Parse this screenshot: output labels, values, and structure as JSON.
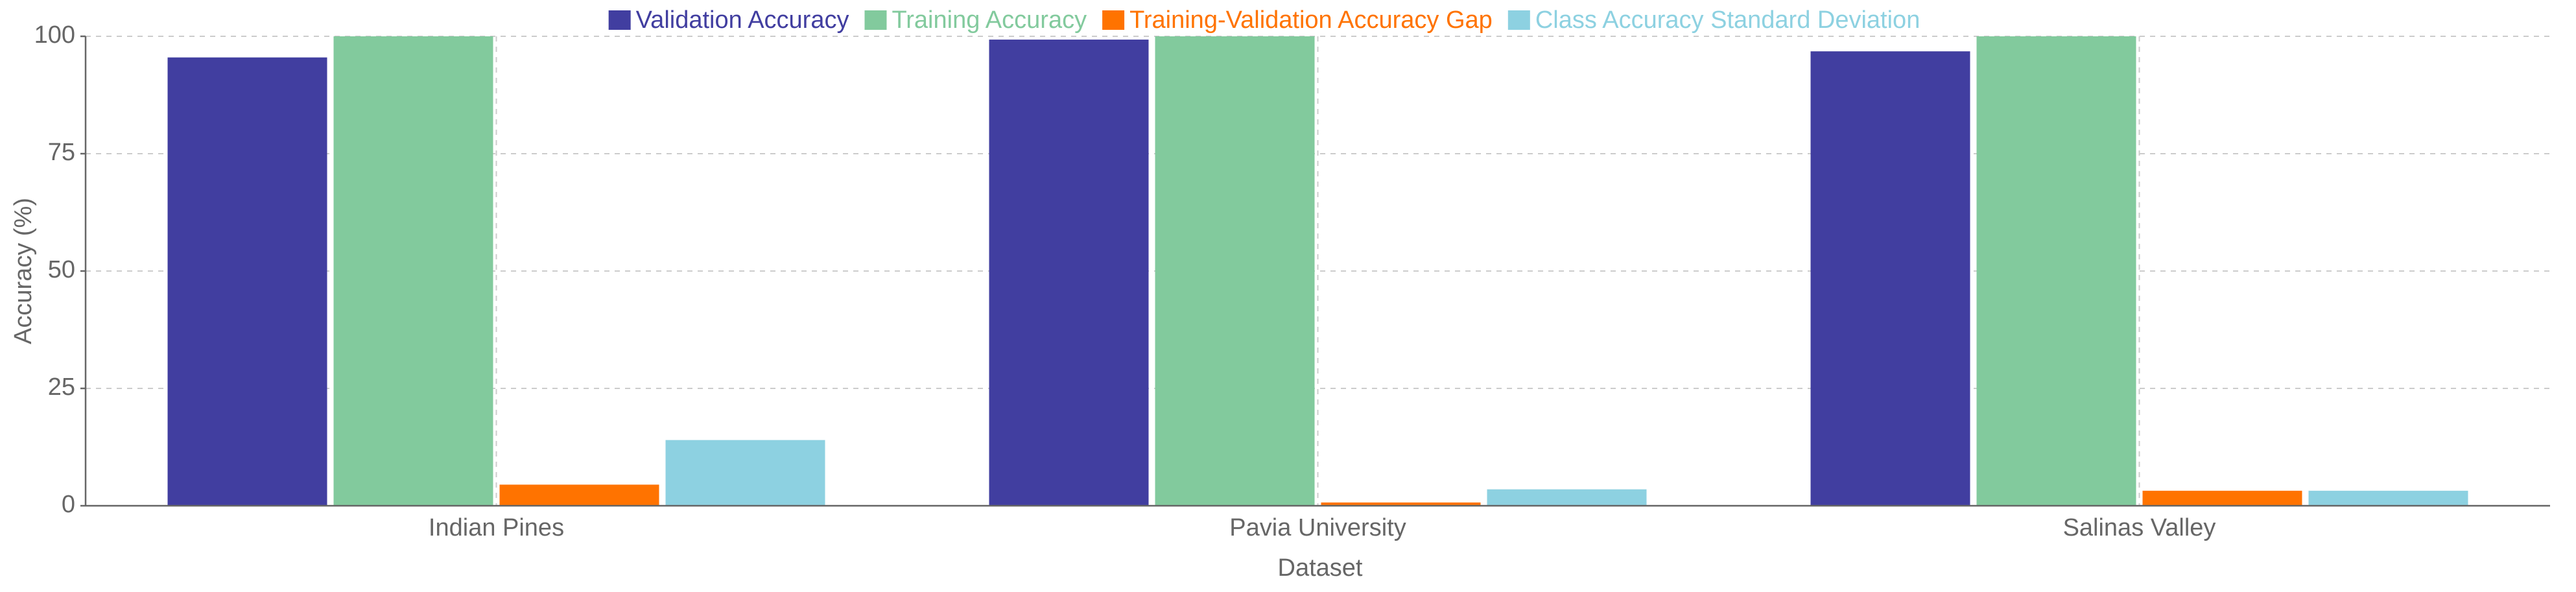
{
  "chart_data": {
    "type": "bar",
    "categories": [
      "Indian Pines",
      "Pavia University",
      "Salinas Valley"
    ],
    "series": [
      {
        "name": "Validation Accuracy",
        "color": "#413ea0",
        "values": [
          95.5,
          99.3,
          96.8
        ]
      },
      {
        "name": "Training Accuracy",
        "color": "#82ca9d",
        "values": [
          100,
          100,
          100
        ]
      },
      {
        "name": "Training-Validation Accuracy Gap",
        "color": "#ff7300",
        "values": [
          4.5,
          0.7,
          3.2
        ]
      },
      {
        "name": "Class Accuracy Standard Deviation",
        "color": "#8dd1e1",
        "values": [
          14,
          3.5,
          3.2
        ]
      }
    ],
    "xlabel": "Dataset",
    "ylabel": "Accuracy (%)",
    "ylim": [
      0,
      100
    ],
    "yticks": [
      0,
      25,
      50,
      75,
      100
    ],
    "grid": true,
    "legend": "top"
  }
}
